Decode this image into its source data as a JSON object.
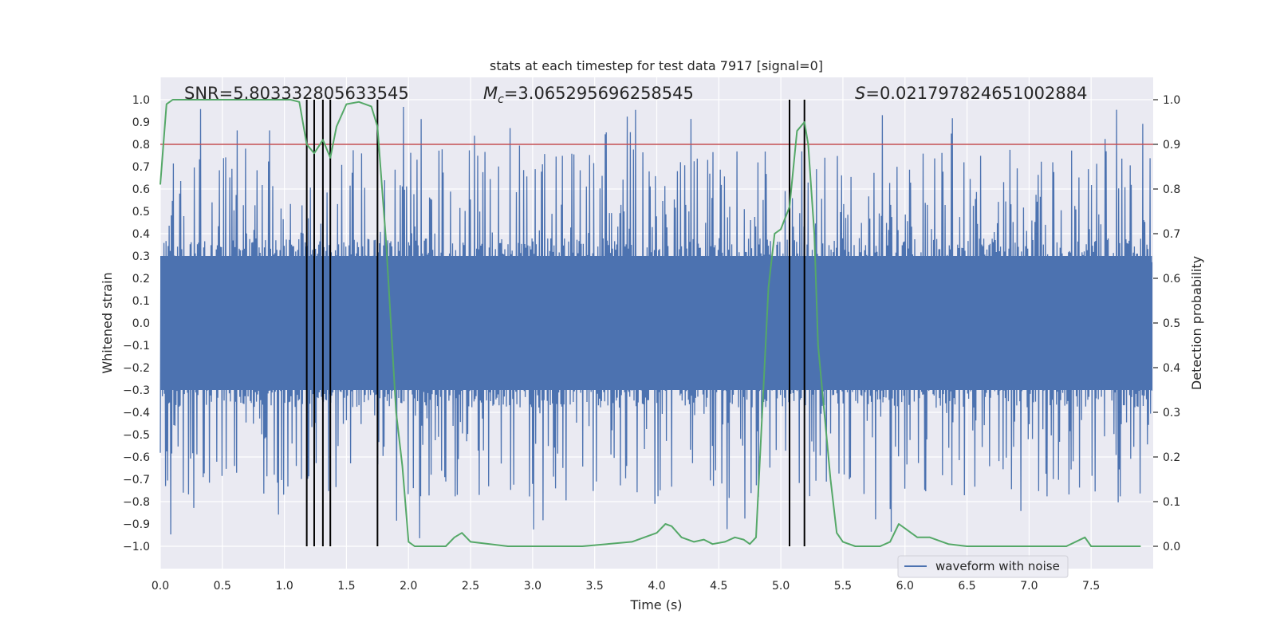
{
  "chart_data": {
    "type": "line",
    "title": "stats at each timestep for test data 7917 [signal=0]",
    "xlabel": "Time (s)",
    "ylabel_left": "Whitened strain",
    "ylabel_right": "Detection probability",
    "xlim": [
      0.0,
      8.0
    ],
    "ylim_left": [
      -1.1,
      1.1
    ],
    "ylim_right": [
      -0.05,
      1.05
    ],
    "x_ticks": [
      "0.0",
      "0.5",
      "1.0",
      "1.5",
      "2.0",
      "2.5",
      "3.0",
      "3.5",
      "4.0",
      "4.5",
      "5.0",
      "5.5",
      "6.0",
      "6.5",
      "7.0",
      "7.5"
    ],
    "y_left_ticks": [
      "1.0",
      "0.9",
      "0.8",
      "0.7",
      "0.6",
      "0.5",
      "0.4",
      "0.3",
      "0.2",
      "0.1",
      "0.0",
      "−0.1",
      "−0.2",
      "−0.3",
      "−0.4",
      "−0.5",
      "−0.6",
      "−0.7",
      "−0.8",
      "−0.9",
      "−1.0"
    ],
    "y_right_ticks": [
      "1.0",
      "0.9",
      "0.8",
      "0.7",
      "0.6",
      "0.5",
      "0.4",
      "0.3",
      "0.2",
      "0.1",
      "0.0"
    ],
    "annotations": {
      "snr": "SNR=5.803332805633545",
      "mc_symbol": "M",
      "mc_sub": "c",
      "mc_value": "=3.065295696258545",
      "s_symbol": "S",
      "s_value": "=0.021797824651002884"
    },
    "legend": {
      "label": "waveform with noise",
      "location": "lower-right"
    },
    "threshold_right": 0.9,
    "trigger_times": [
      1.18,
      1.24,
      1.31,
      1.37,
      1.75,
      5.07,
      5.19
    ],
    "trigger_range_right": [
      0.0,
      1.0
    ],
    "noise_series": {
      "name": "waveform with noise",
      "color": "#4c72b0",
      "core_amplitude": 0.38,
      "max_peak": 0.99,
      "min_trough": -1.0
    },
    "detection_probability": {
      "color": "#55a868",
      "x": [
        0.0,
        0.05,
        0.1,
        0.2,
        0.4,
        0.6,
        0.8,
        1.0,
        1.05,
        1.12,
        1.18,
        1.24,
        1.31,
        1.37,
        1.42,
        1.5,
        1.6,
        1.7,
        1.75,
        1.82,
        1.9,
        1.95,
        2.0,
        2.05,
        2.1,
        2.3,
        2.37,
        2.43,
        2.5,
        2.8,
        3.0,
        3.2,
        3.3,
        3.4,
        3.6,
        3.8,
        3.9,
        4.0,
        4.07,
        4.12,
        4.2,
        4.3,
        4.38,
        4.45,
        4.55,
        4.63,
        4.7,
        4.75,
        4.8,
        4.85,
        4.9,
        4.95,
        5.0,
        5.07,
        5.13,
        5.19,
        5.22,
        5.27,
        5.3,
        5.35,
        5.4,
        5.45,
        5.5,
        5.6,
        5.8,
        5.88,
        5.95,
        6.0,
        6.05,
        6.1,
        6.2,
        6.35,
        6.5,
        7.0,
        7.3,
        7.45,
        7.5,
        7.9
      ],
      "y": [
        0.81,
        0.99,
        1.0,
        1.0,
        1.0,
        1.0,
        1.0,
        1.0,
        1.0,
        0.995,
        0.9,
        0.88,
        0.91,
        0.87,
        0.94,
        0.99,
        0.995,
        0.985,
        0.94,
        0.68,
        0.3,
        0.18,
        0.01,
        0.0,
        0.0,
        0.0,
        0.02,
        0.03,
        0.01,
        0.0,
        0.0,
        0.0,
        0.0,
        0.0,
        0.005,
        0.01,
        0.02,
        0.03,
        0.05,
        0.045,
        0.02,
        0.01,
        0.015,
        0.005,
        0.01,
        0.02,
        0.015,
        0.005,
        0.02,
        0.3,
        0.58,
        0.7,
        0.71,
        0.76,
        0.93,
        0.95,
        0.9,
        0.7,
        0.45,
        0.3,
        0.15,
        0.03,
        0.01,
        0.0,
        0.0,
        0.01,
        0.05,
        0.04,
        0.03,
        0.02,
        0.02,
        0.005,
        0.0,
        0.0,
        0.0,
        0.02,
        0.0,
        0.0
      ]
    }
  }
}
